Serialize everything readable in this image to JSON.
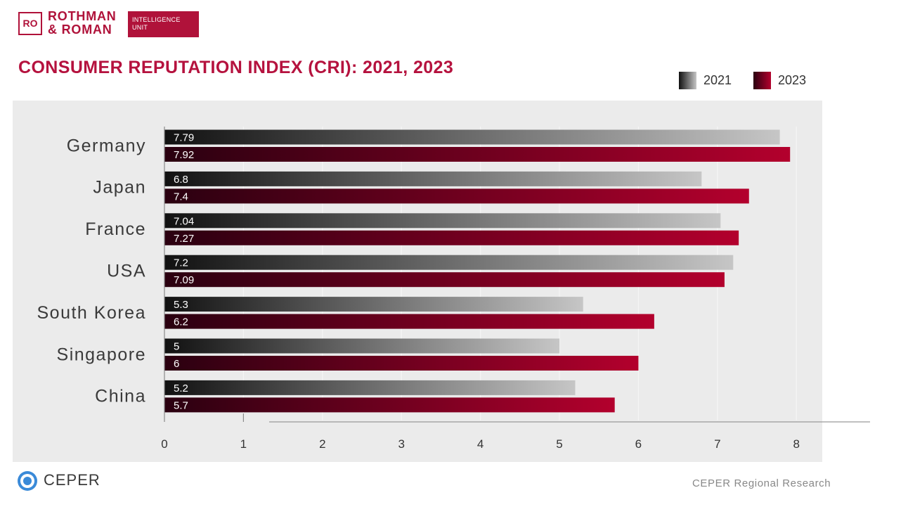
{
  "logo": {
    "monogram": "RO",
    "name_line1": "ROTHMAN",
    "name_line2": "& ROMAN",
    "unit_line1": "INTELLIGENCE",
    "unit_line2": "UNIT",
    "brand_color": "#b0123a"
  },
  "chart_data": {
    "type": "bar",
    "orientation": "horizontal",
    "title": "CONSUMER REPUTATION INDEX (CRI): 2021, 2023",
    "categories": [
      "Germany",
      "Japan",
      "France",
      "USA",
      "South Korea",
      "Singapore",
      "China"
    ],
    "series": [
      {
        "name": "2021",
        "values": [
          7.79,
          6.8,
          7.04,
          7.2,
          5.3,
          5,
          5.2
        ],
        "color_start": "#111111",
        "color_end": "#c6c6c6"
      },
      {
        "name": "2023",
        "values": [
          7.92,
          7.4,
          7.27,
          7.09,
          6.2,
          6,
          5.7
        ],
        "color_start": "#2a0010",
        "color_end": "#b3002d"
      }
    ],
    "xlim": [
      0,
      8
    ],
    "xticks": [
      0,
      1,
      2,
      3,
      4,
      5,
      6,
      7,
      8
    ],
    "data_labels": true,
    "legend": "top-right",
    "grid": true
  },
  "footer": {
    "org_icon": "ceper-circle-icon",
    "org_name": "CEPER",
    "org_color": "#3a8ad8",
    "source": "CEPER Regional Research"
  }
}
